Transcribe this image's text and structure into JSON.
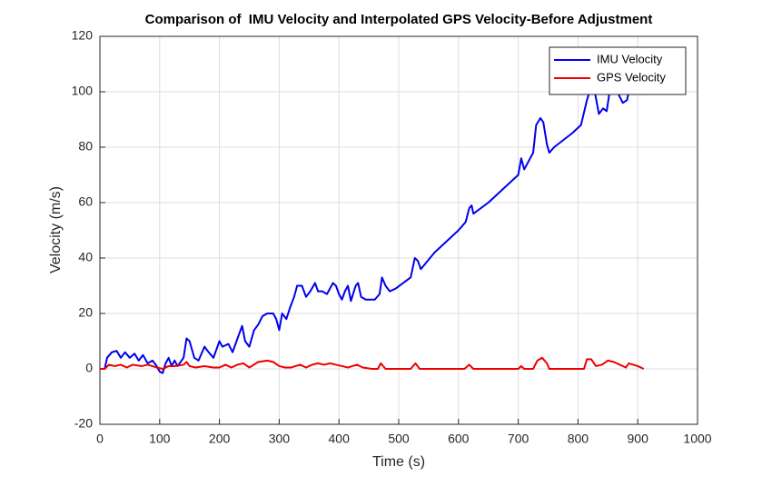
{
  "chart_data": {
    "type": "line",
    "title": "Comparison of  IMU Velocity and Interpolated GPS Velocity-Before Adjustment",
    "xlabel": "Time (s)",
    "ylabel": "Velocity (m/s)",
    "xlim": [
      0,
      1000
    ],
    "xticks": [
      0,
      100,
      200,
      300,
      400,
      500,
      600,
      700,
      800,
      900,
      1000
    ],
    "ylim": [
      -20,
      120
    ],
    "yticks": [
      -20,
      0,
      20,
      40,
      60,
      80,
      100,
      120
    ],
    "grid": true,
    "legend": "upper right",
    "series": [
      {
        "name": "IMU Velocity",
        "color": "#0000ee",
        "x": [
          0,
          8,
          12,
          20,
          28,
          35,
          42,
          50,
          58,
          65,
          72,
          80,
          88,
          95,
          100,
          105,
          110,
          115,
          120,
          125,
          130,
          140,
          145,
          150,
          158,
          165,
          175,
          182,
          190,
          200,
          205,
          215,
          222,
          232,
          238,
          243,
          250,
          258,
          265,
          272,
          280,
          290,
          295,
          300,
          305,
          312,
          318,
          325,
          330,
          338,
          345,
          352,
          360,
          365,
          372,
          380,
          390,
          395,
          400,
          405,
          410,
          415,
          420,
          428,
          432,
          437,
          445,
          460,
          468,
          472,
          478,
          485,
          495,
          520,
          527,
          532,
          537,
          560,
          600,
          612,
          618,
          622,
          625,
          650,
          700,
          705,
          710,
          715,
          725,
          730,
          737,
          742,
          748,
          752,
          760,
          790,
          800,
          805,
          815,
          822,
          828,
          835,
          842,
          848,
          855,
          862,
          868,
          875,
          882,
          888,
          895,
          908
        ],
        "values": [
          0,
          0,
          4,
          6,
          6.5,
          4,
          6,
          4,
          5.5,
          3,
          5,
          2,
          3,
          1,
          -1,
          -1.5,
          2,
          4,
          1,
          3,
          1,
          4,
          11,
          10,
          4,
          3,
          8,
          6,
          4,
          10,
          8,
          9,
          6,
          12,
          15.5,
          10,
          8,
          14,
          16,
          19,
          20,
          20,
          18,
          14,
          20,
          18,
          22,
          26,
          30,
          30,
          26,
          28,
          31,
          28,
          28,
          27,
          31,
          30,
          27,
          25,
          28,
          30,
          24.5,
          30,
          31,
          26,
          25,
          25,
          27,
          33,
          30,
          28,
          29,
          33,
          40,
          39,
          36,
          42,
          50,
          53,
          58,
          59,
          56,
          60,
          70,
          76,
          72,
          74,
          78,
          88,
          90.5,
          89,
          81,
          78,
          80,
          85,
          87,
          88,
          97,
          102,
          100,
          92,
          94,
          93,
          103,
          103,
          99,
          96,
          97,
          103,
          101,
          99
        ]
      },
      {
        "name": "GPS Velocity",
        "color": "#ee0000",
        "x": [
          0,
          8,
          15,
          25,
          35,
          45,
          55,
          70,
          80,
          95,
          105,
          115,
          125,
          140,
          145,
          150,
          160,
          175,
          190,
          200,
          210,
          220,
          230,
          240,
          250,
          265,
          280,
          290,
          300,
          310,
          320,
          335,
          345,
          355,
          365,
          375,
          385,
          395,
          405,
          415,
          430,
          440,
          455,
          465,
          470,
          478,
          520,
          528,
          535,
          610,
          618,
          625,
          700,
          705,
          710,
          725,
          732,
          740,
          748,
          752,
          810,
          815,
          822,
          830,
          840,
          850,
          860,
          870,
          880,
          885,
          900,
          910
        ],
        "values": [
          0,
          0,
          1.5,
          1,
          1.5,
          0.5,
          1.5,
          1,
          1.5,
          0.5,
          0,
          1,
          1,
          1.5,
          2.5,
          1,
          0.5,
          1,
          0.5,
          0.5,
          1.5,
          0.5,
          1.5,
          2,
          0.5,
          2.5,
          3,
          2.5,
          1,
          0.5,
          0.5,
          1.5,
          0.5,
          1.5,
          2,
          1.5,
          2,
          1.5,
          1,
          0.5,
          1.5,
          0.5,
          0,
          0,
          2,
          0,
          0,
          2,
          0,
          0,
          1.5,
          0,
          0,
          1,
          0,
          0,
          3,
          4,
          2,
          0,
          0,
          3.5,
          3.5,
          1,
          1.5,
          3,
          2.5,
          1.5,
          0.5,
          2,
          1,
          0
        ]
      }
    ]
  }
}
